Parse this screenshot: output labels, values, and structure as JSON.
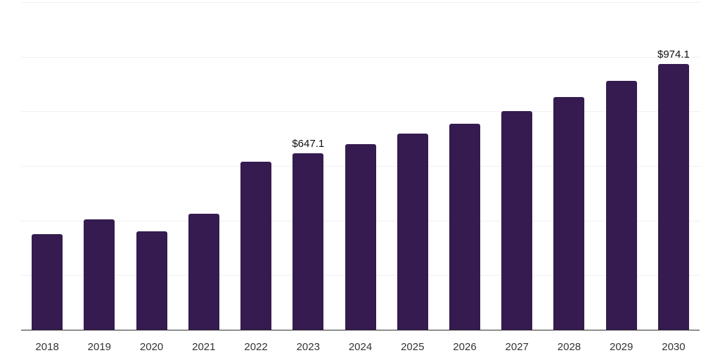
{
  "chart_data": {
    "type": "bar",
    "title": "",
    "xlabel": "",
    "ylabel": "",
    "categories": [
      "2018",
      "2019",
      "2020",
      "2021",
      "2022",
      "2023",
      "2024",
      "2025",
      "2026",
      "2027",
      "2028",
      "2029",
      "2030"
    ],
    "values": [
      351.2,
      404.9,
      360.5,
      425.4,
      615.0,
      647.1,
      680.6,
      719.2,
      755.3,
      802.1,
      853.4,
      910.8,
      974.1
    ],
    "value_labels": [
      "",
      "",
      "",
      "",
      "",
      "$647.1",
      "",
      "",
      "",
      "",
      "",
      "",
      "$974.1"
    ],
    "labeled_points": [
      {
        "category": "2023",
        "label": "$647.1",
        "value": 647.1
      },
      {
        "category": "2030",
        "label": "$974.1",
        "value": 974.1
      }
    ],
    "ylim": [
      0,
      1200
    ],
    "gridline_step": 200,
    "grid": "horizontal-only",
    "legend": "none",
    "y_axis_ticks_visible": false,
    "bar_corner_radius": "rounded-top"
  },
  "style": {
    "bar_color": "#351b4f",
    "gridline_color": "#f0f0f0",
    "axis_line_color": "#2e2e2e",
    "tick_label_color": "#333333",
    "data_label_color": "#0f0f0f",
    "background_color": "#ffffff"
  }
}
